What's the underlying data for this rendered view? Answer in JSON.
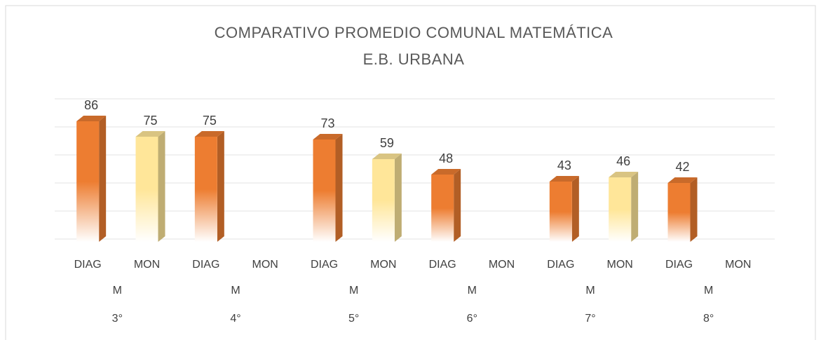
{
  "chart_data": {
    "type": "bar3d",
    "title": [
      "COMPARATIVO PROMEDIO COMUNAL MATEMÁTICA",
      "E.B. URBANA"
    ],
    "categories": [
      "DIAG",
      "MON",
      "DIAG",
      "MON",
      "DIAG",
      "MON",
      "DIAG",
      "MON",
      "DIAG",
      "MON",
      "DIAG",
      "MON"
    ],
    "group_labels": [
      "M",
      "M",
      "M",
      "M",
      "M",
      "M"
    ],
    "grade_labels": [
      "3°",
      "4°",
      "5°",
      "6°",
      "7°",
      "8°"
    ],
    "values": [
      86,
      75,
      75,
      null,
      73,
      59,
      48,
      null,
      43,
      46,
      42,
      null
    ],
    "colors": [
      "#ED7D31",
      "#FFE699",
      "#ED7D31",
      "#FFE699",
      "#ED7D31",
      "#FFE699",
      "#ED7D31",
      "#FFE699",
      "#ED7D31",
      "#FFE699",
      "#ED7D31",
      "#FFE699"
    ],
    "ylim": [
      0,
      100
    ],
    "yticks": [
      0,
      20,
      40,
      60,
      80,
      100
    ],
    "grid": true
  }
}
